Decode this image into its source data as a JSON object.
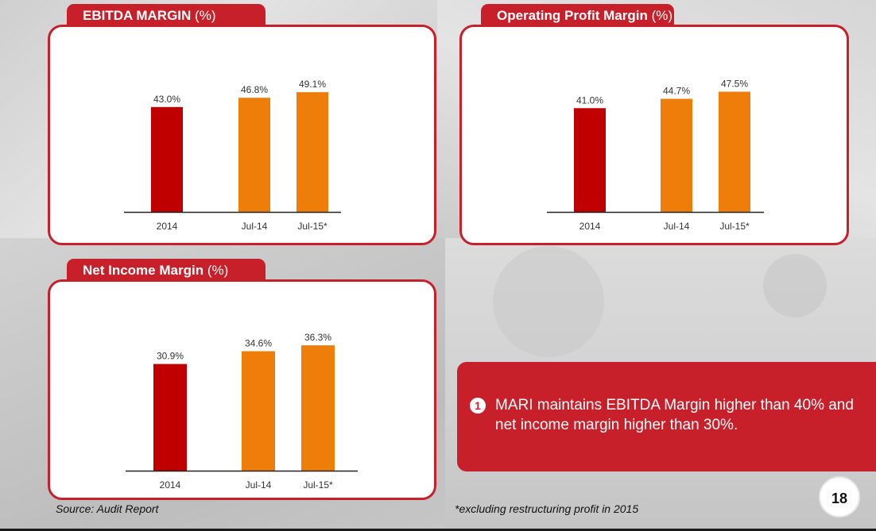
{
  "colors": {
    "accent_red": "#c8202a",
    "bar_2014": "#c00000",
    "bar_jul": "#ee7d0a",
    "axis": "#222222",
    "text": "#333333"
  },
  "chart_data": [
    {
      "type": "bar",
      "title": "EBITDA MARGIN",
      "title_unit": "(%)",
      "categories": [
        "2014",
        "Jul-14",
        "Jul-15*"
      ],
      "values": [
        43.0,
        46.8,
        49.1
      ],
      "value_labels": [
        "43.0%",
        "46.8%",
        "49.1%"
      ],
      "bar_colors": [
        "#c00000",
        "#ee7d0a",
        "#ee7d0a"
      ],
      "xlabel": "",
      "ylabel": "",
      "ylim": [
        0,
        55
      ],
      "grid": false
    },
    {
      "type": "bar",
      "title": "Operating Profit Margin",
      "title_unit": "(%)",
      "categories": [
        "2014",
        "Jul-14",
        "Jul-15*"
      ],
      "values": [
        41.0,
        44.7,
        47.5
      ],
      "value_labels": [
        "41.0%",
        "44.7%",
        "47.5%"
      ],
      "bar_colors": [
        "#c00000",
        "#ee7d0a",
        "#ee7d0a"
      ],
      "xlabel": "",
      "ylabel": "",
      "ylim": [
        0,
        53
      ],
      "grid": false
    },
    {
      "type": "bar",
      "title": "Net Income Margin",
      "title_unit": "(%)",
      "categories": [
        "2014",
        "Jul-14",
        "Jul-15*"
      ],
      "values": [
        30.9,
        34.6,
        36.3
      ],
      "value_labels": [
        "30.9%",
        "34.6%",
        "36.3%"
      ],
      "bar_colors": [
        "#c00000",
        "#ee7d0a",
        "#ee7d0a"
      ],
      "xlabel": "",
      "ylabel": "",
      "ylim": [
        0,
        40
      ],
      "grid": false
    }
  ],
  "callout": {
    "number": "1",
    "text": "MARI maintains EBITDA Margin higher than 40% and net income margin higher than 30%."
  },
  "footer": {
    "source": "Source: Audit Report",
    "footnote": "*excluding restructuring profit in 2015",
    "page_number": "18"
  }
}
